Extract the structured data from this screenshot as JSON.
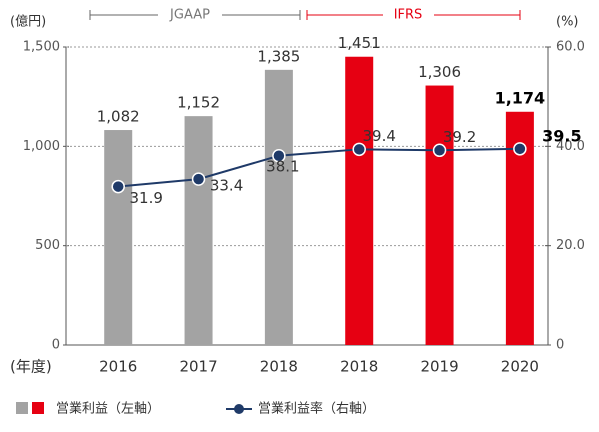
{
  "chart_data": {
    "type": "bar_line",
    "categories": [
      "2016",
      "2017",
      "2018",
      "2018",
      "2019",
      "2020"
    ],
    "series": [
      {
        "name": "営業利益（左軸）",
        "colors": [
          "#a3a3a3",
          "#a3a3a3",
          "#a3a3a3",
          "#e60012",
          "#e60012",
          "#e60012"
        ],
        "values": [
          1082,
          1152,
          1385,
          1451,
          1306,
          1174
        ],
        "value_labels": [
          "1,082",
          "1,152",
          "1,385",
          "1,451",
          "1,306",
          "1,174"
        ]
      },
      {
        "name": "営業利益率（右軸）",
        "color": "#1f3a68",
        "axis": "y2",
        "values": [
          31.9,
          33.4,
          38.1,
          39.4,
          39.2,
          39.5
        ]
      }
    ],
    "ylabel": "(億円)",
    "y2label": "(%)",
    "xlabel": "(年度)",
    "annotations": [
      "JGAAP",
      "IFRS"
    ],
    "ylim": [
      0,
      1500
    ],
    "yticks": [
      0,
      500,
      {
        "value": 1000,
        "label": "1,000"
      },
      {
        "value": 1500,
        "label": "1,500"
      }
    ],
    "y2lim": [
      0,
      60
    ],
    "y2ticks": [
      0,
      {
        "value": 20,
        "label": "20.0"
      },
      {
        "value": 40,
        "label": "40.0"
      },
      {
        "value": 60,
        "label": "60.0"
      }
    ],
    "grid": true
  }
}
